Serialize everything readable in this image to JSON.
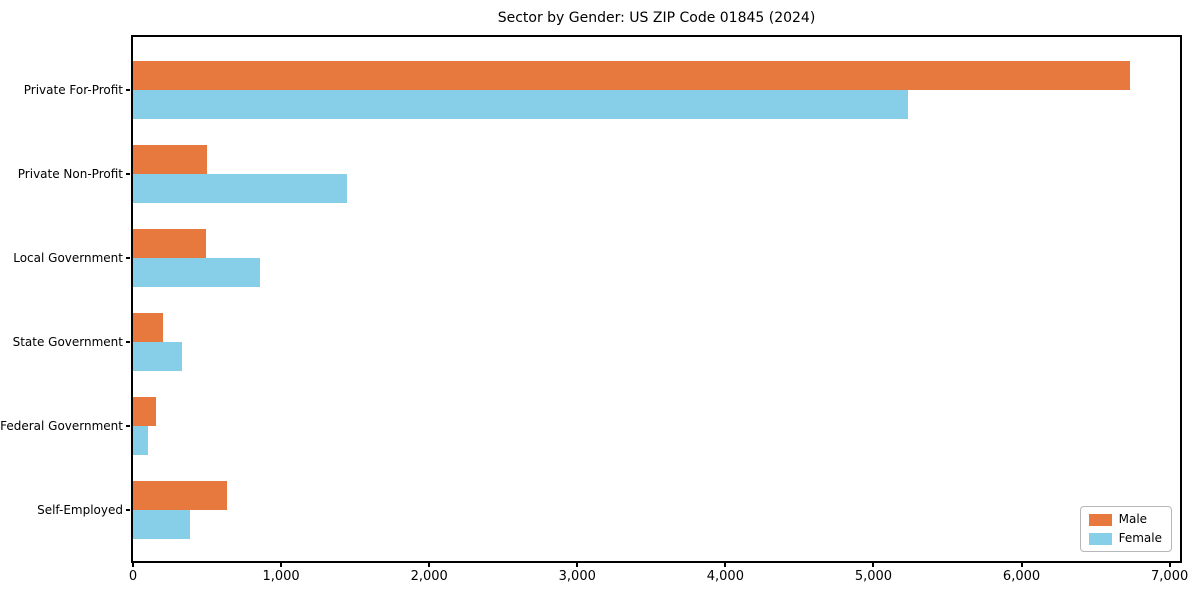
{
  "chart_data": {
    "type": "bar",
    "orientation": "horizontal",
    "title": "Sector by Gender: US ZIP Code 01845 (2024)",
    "categories": [
      "Private For-Profit",
      "Private Non-Profit",
      "Local Government",
      "State Government",
      "Federal Government",
      "Self-Employed"
    ],
    "series": [
      {
        "name": "Male",
        "color": "#E8793E",
        "values": [
          6730,
          500,
          495,
          205,
          155,
          635
        ]
      },
      {
        "name": "Female",
        "color": "#87CEE8",
        "values": [
          5230,
          1445,
          855,
          330,
          100,
          385
        ]
      }
    ],
    "xlim": [
      0,
      7070
    ],
    "xticks": [
      0,
      1000,
      2000,
      3000,
      4000,
      5000,
      6000,
      7000
    ],
    "xtick_labels": [
      "0",
      "1,000",
      "2,000",
      "3,000",
      "4,000",
      "5,000",
      "6,000",
      "7,000"
    ],
    "xlabel": "",
    "ylabel": "",
    "grid": false,
    "legend_position": "lower right",
    "axis_color": "#000000",
    "background_color": "#ffffff"
  }
}
